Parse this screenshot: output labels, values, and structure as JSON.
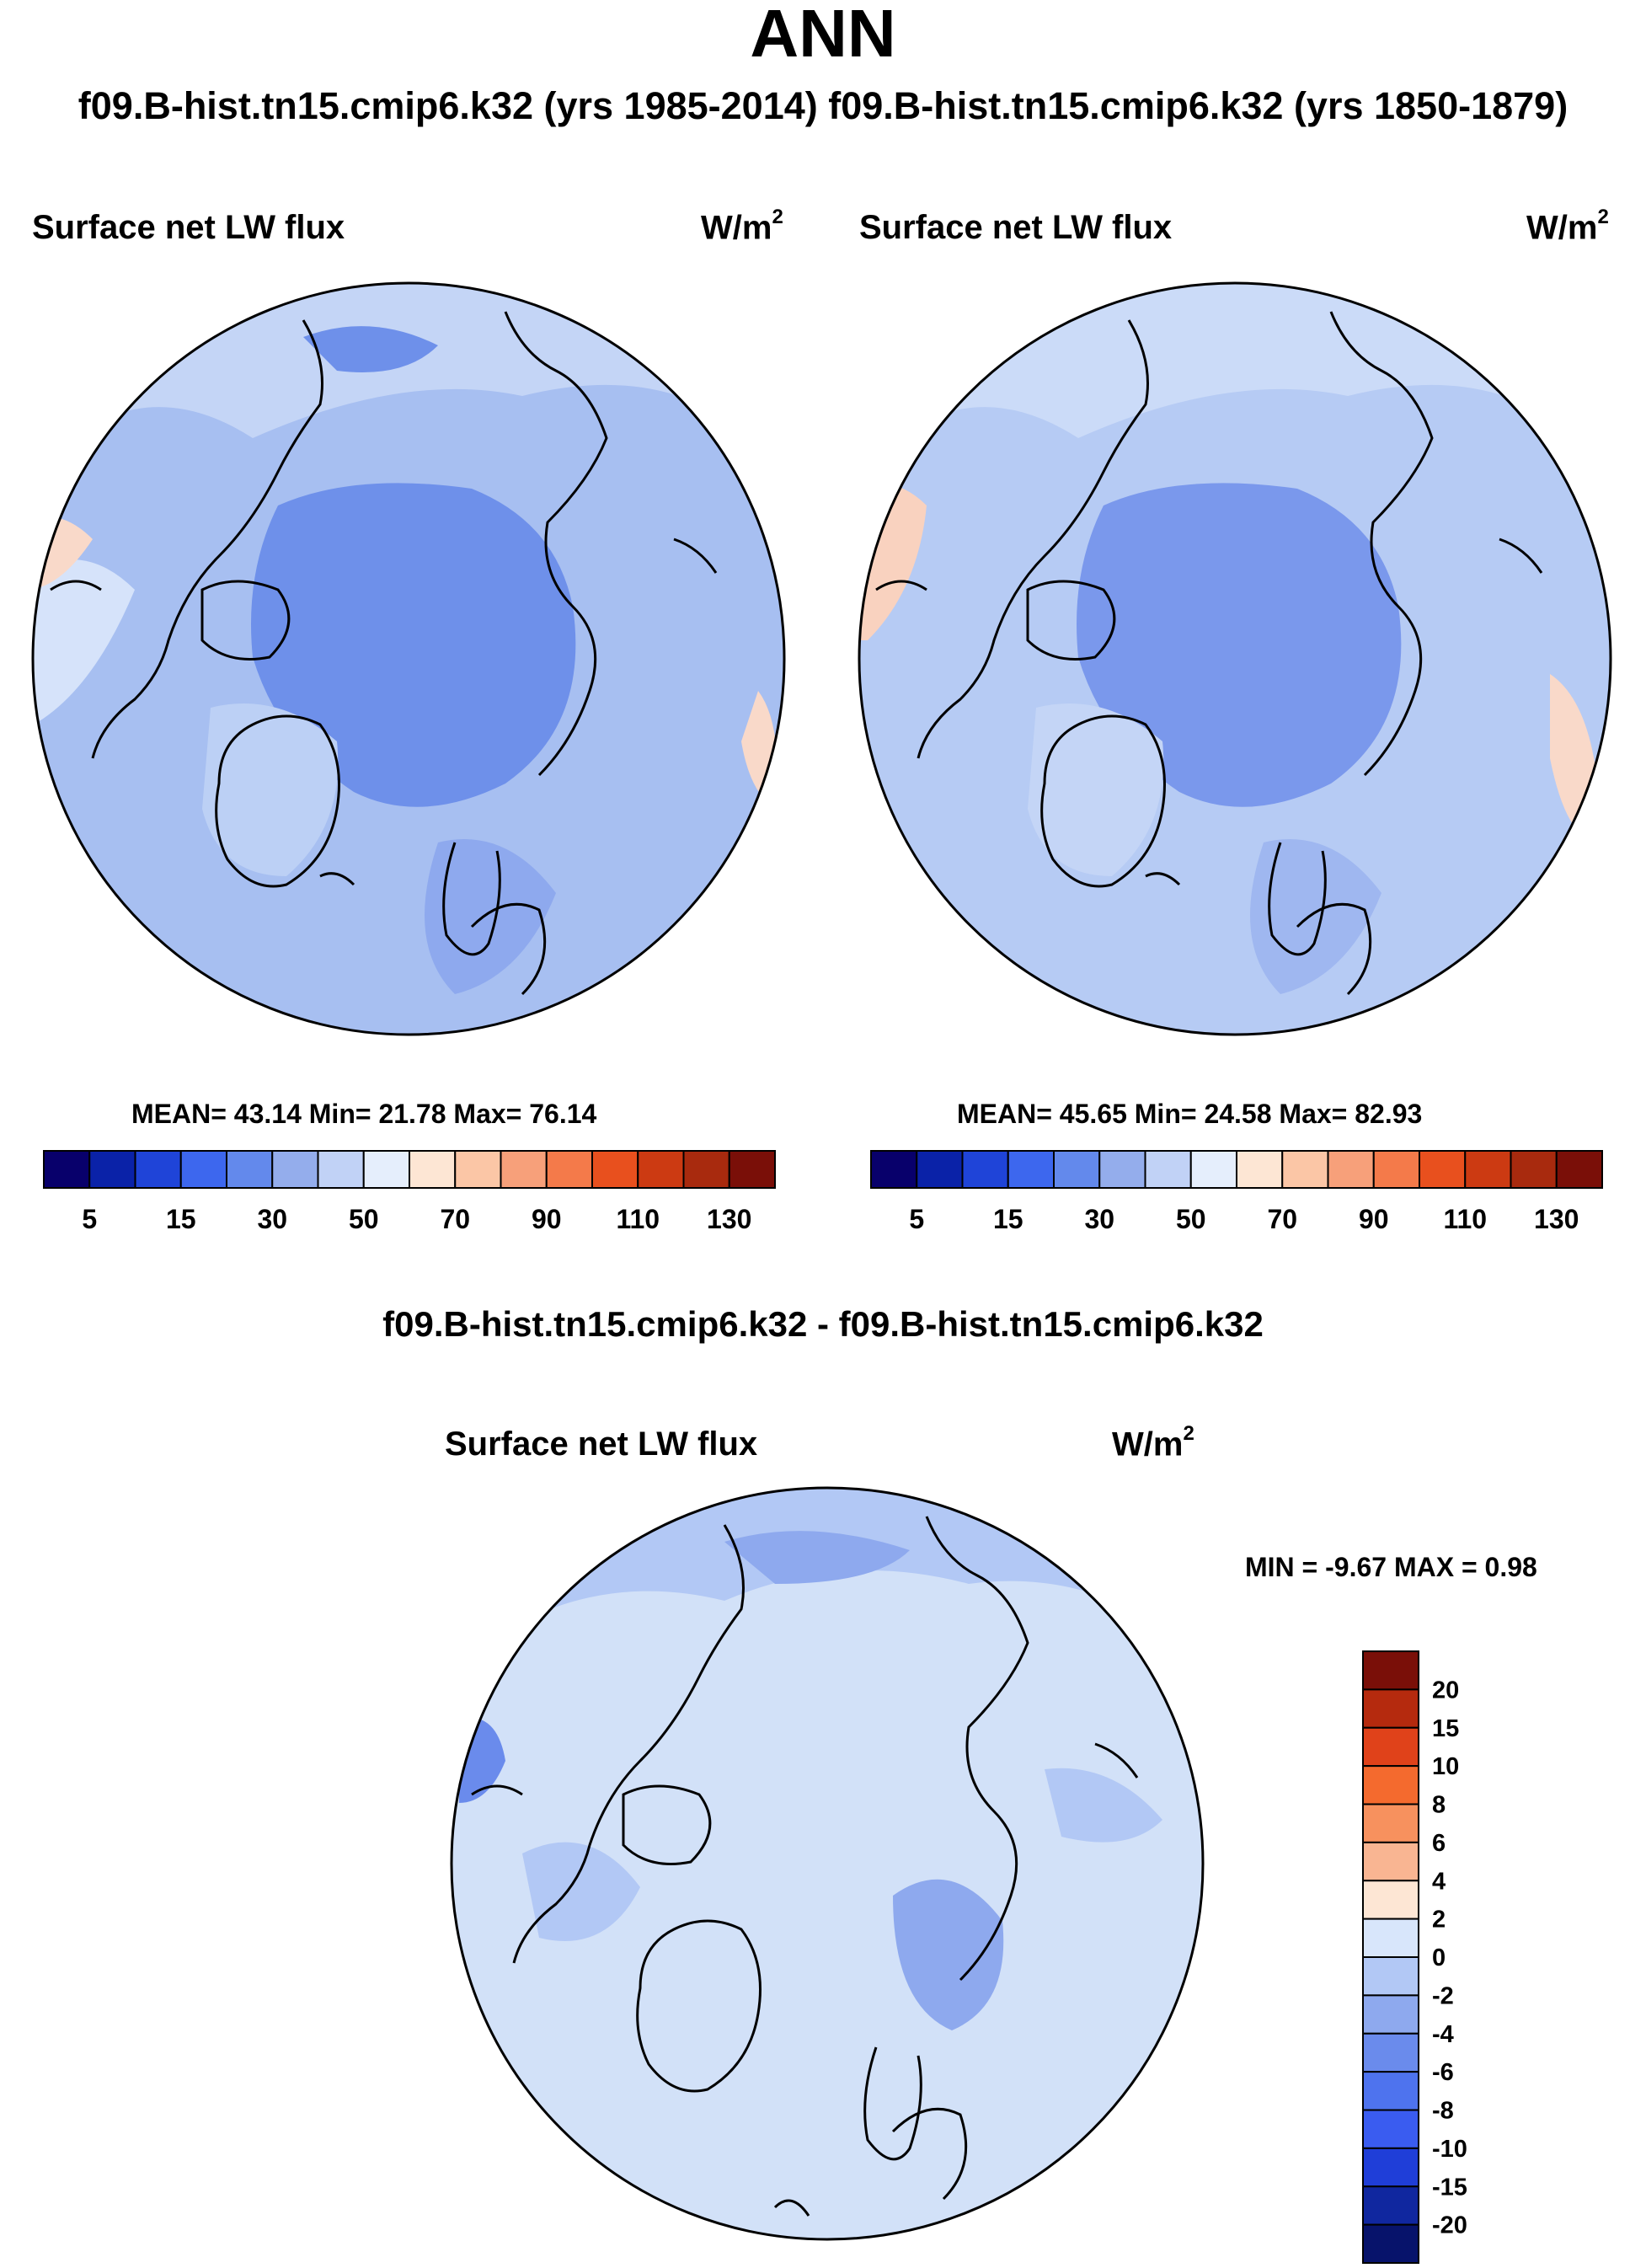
{
  "header": {
    "title": "ANN",
    "subtitle": "f09.B-hist.tn15.cmip6.k32 (yrs 1985-2014) f09.B-hist.tn15.cmip6.k32 (yrs 1850-1879)"
  },
  "panels": [
    {
      "variable": "Surface net LW flux",
      "units_base": "W/m",
      "units_exp": "2",
      "stats": "MEAN=  43.14  Min=  21.78  Max=  76.14"
    },
    {
      "variable": "Surface net LW flux",
      "units_base": "W/m",
      "units_exp": "2",
      "stats": "MEAN=  45.65  Min=  24.58  Max=  82.93"
    }
  ],
  "diff_panel": {
    "title": "f09.B-hist.tn15.cmip6.k32 - f09.B-hist.tn15.cmip6.k32",
    "variable": "Surface net LW flux",
    "units_base": "W/m",
    "units_exp": "2",
    "stats": "MIN =  -9.67 MAX =    0.98"
  },
  "colorbar_main": {
    "colors": [
      "#08006b",
      "#0a22a8",
      "#1f44d8",
      "#3d67ee",
      "#6389ec",
      "#94adec",
      "#c1d2f6",
      "#e5eefc",
      "#fde6d4",
      "#fbc6a6",
      "#f7a07a",
      "#f47a4a",
      "#e8501e",
      "#cc3a12",
      "#a82a0e",
      "#7a0f08"
    ],
    "labels": [
      "5",
      "15",
      "30",
      "50",
      "70",
      "90",
      "110",
      "130"
    ]
  },
  "colorbar_diff": {
    "colors": [
      "#7a0f08",
      "#b52a0e",
      "#e0421a",
      "#f46a2e",
      "#f7915e",
      "#f9b592",
      "#fde6d4",
      "#d8e6fb",
      "#b2c8f5",
      "#8ea9ee",
      "#6a8bec",
      "#4e73ee",
      "#3a5cf0",
      "#1f3ed8",
      "#10279f",
      "#07136b"
    ],
    "labels": [
      "20",
      "15",
      "10",
      "8",
      "6",
      "4",
      "2",
      "0",
      "-2",
      "-4",
      "-6",
      "-8",
      "-10",
      "-15",
      "-20"
    ]
  },
  "colors": {
    "polar_base_1": "#94adec",
    "polar_base_2": "#a3bcf0",
    "polar_base_diff": "#d2e1f8",
    "ocean_arctic": "#6389ec",
    "coast": "#000000"
  }
}
